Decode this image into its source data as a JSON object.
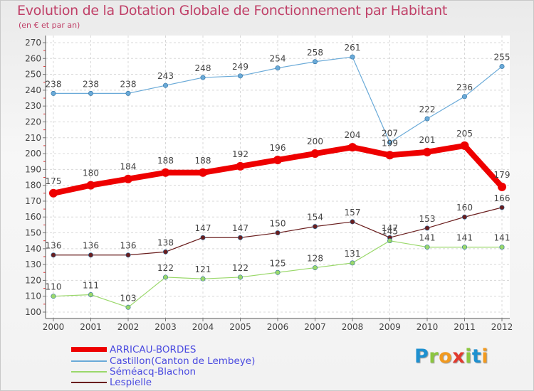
{
  "header": {
    "title": "Evolution de la Dotation Globale de Fonctionnement par Habitant",
    "subtitle": "(en € et par an)"
  },
  "logo": {
    "text": "Proxiti",
    "colors": [
      "#1e90d0",
      "#8cc63f",
      "#f29a1f",
      "#e23a2e",
      "#8cc63f",
      "#1e90d0",
      "#f29a1f"
    ]
  },
  "chart_data": {
    "type": "line",
    "x": [
      "2000",
      "2001",
      "2002",
      "2003",
      "2004",
      "2005",
      "2006",
      "2007",
      "2008",
      "2009",
      "2010",
      "2011",
      "2012"
    ],
    "ylim": [
      100,
      270
    ],
    "yticks": [
      100,
      110,
      120,
      130,
      140,
      150,
      160,
      170,
      180,
      190,
      200,
      210,
      220,
      230,
      240,
      250,
      260,
      270
    ],
    "grid": true,
    "legend_position": "bottom-left",
    "series": [
      {
        "name": "ARRICAU-BORDES",
        "color": "#ee0000",
        "values": [
          175,
          180,
          184,
          188,
          188,
          192,
          196,
          200,
          204,
          199,
          201,
          205,
          179
        ]
      },
      {
        "name": "Castillon(Canton de Lembeye)",
        "color": "#6aaad8",
        "values": [
          238,
          238,
          238,
          243,
          248,
          249,
          254,
          258,
          261,
          207,
          222,
          236,
          255
        ]
      },
      {
        "name": "Séméacq-Blachon",
        "color": "#9ad86a",
        "values": [
          110,
          111,
          103,
          122,
          121,
          122,
          125,
          128,
          131,
          145,
          141,
          141,
          141
        ]
      },
      {
        "name": "Lespielle",
        "color": "#6a1e1e",
        "values": [
          136,
          136,
          136,
          138,
          147,
          147,
          150,
          154,
          157,
          147,
          153,
          160,
          166
        ]
      }
    ],
    "point_labels": [
      [
        "175",
        "180",
        "184",
        "188",
        "188",
        "192",
        "196",
        "200",
        "204",
        "199",
        "201",
        "205",
        "179"
      ],
      [
        "238",
        "238",
        "238",
        "243",
        "248",
        "249",
        "254",
        "258",
        "261",
        "207",
        "222",
        "236",
        "255"
      ],
      [
        "110",
        "111",
        "103",
        "122",
        "121",
        "122",
        "125",
        "128",
        "131",
        "145",
        "141",
        "141",
        "141"
      ],
      [
        "136",
        "136",
        "136",
        "138",
        "147",
        "147",
        "150",
        "154",
        "157",
        "147",
        "153",
        "160",
        "166"
      ]
    ]
  }
}
